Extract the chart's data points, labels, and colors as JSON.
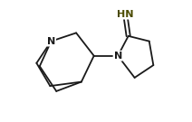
{
  "bg_color": "#ffffff",
  "bond_color": "#1a1a1a",
  "atom_color_N": "#1a1a1a",
  "atom_color_HN": "#4a4a00",
  "line_width": 1.3,
  "font_size_atom": 8,
  "fig_width": 2.12,
  "fig_height": 1.35,
  "dpi": 100,
  "xlim": [
    0.5,
    8.5
  ],
  "ylim": [
    1.2,
    7.0
  ]
}
